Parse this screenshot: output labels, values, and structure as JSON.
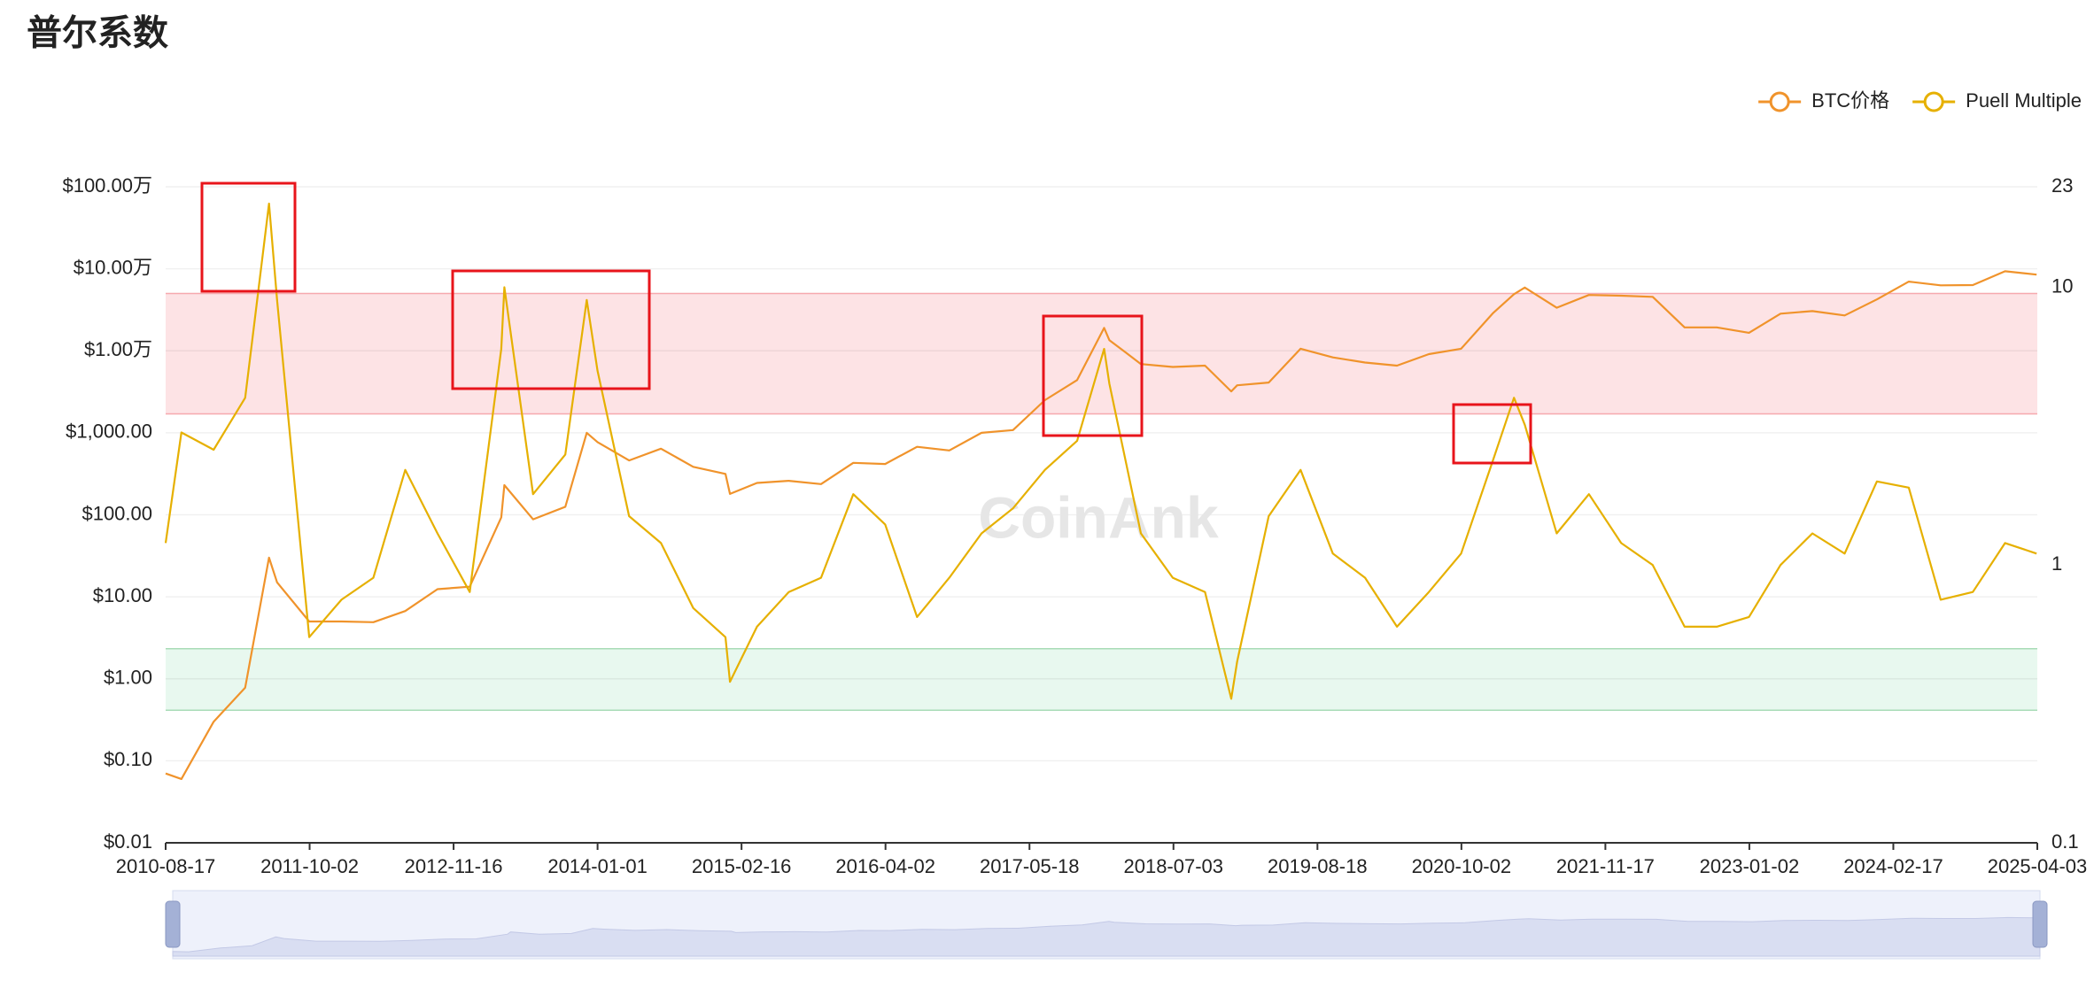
{
  "chart_data": {
    "type": "line",
    "title": "普尔系数",
    "watermark": "CoinAnk",
    "legend": "top-right",
    "grid": true,
    "yscale": "log",
    "y2scale": "log",
    "x": [
      "2010-08-17",
      "2010-10-01",
      "2011-01-01",
      "2011-04-01",
      "2011-06-08",
      "2011-07-01",
      "2011-10-01",
      "2012-01-01",
      "2012-04-01",
      "2012-07-01",
      "2012-10-01",
      "2013-01-01",
      "2013-04-01",
      "2013-04-10",
      "2013-07-01",
      "2013-10-01",
      "2013-12-01",
      "2014-01-01",
      "2014-04-01",
      "2014-07-01",
      "2014-10-01",
      "2015-01-01",
      "2015-01-14",
      "2015-04-01",
      "2015-07-01",
      "2015-10-01",
      "2016-01-01",
      "2016-04-01",
      "2016-07-01",
      "2016-10-01",
      "2017-01-01",
      "2017-04-01",
      "2017-07-01",
      "2017-10-01",
      "2017-12-17",
      "2018-01-01",
      "2018-04-01",
      "2018-07-01",
      "2018-10-01",
      "2018-12-15",
      "2019-01-01",
      "2019-04-01",
      "2019-07-01",
      "2019-10-01",
      "2020-01-01",
      "2020-04-01",
      "2020-07-01",
      "2020-10-01",
      "2021-01-01",
      "2021-03-01",
      "2021-04-01",
      "2021-07-01",
      "2021-10-01",
      "2022-01-01",
      "2022-04-01",
      "2022-07-01",
      "2022-10-01",
      "2023-01-01",
      "2023-04-01",
      "2023-07-01",
      "2023-10-01",
      "2024-01-01",
      "2024-04-01",
      "2024-07-01",
      "2024-10-01",
      "2025-01-01",
      "2025-04-01"
    ],
    "series": [
      {
        "name": "BTC价格",
        "color": "#f0932b",
        "axis": "y",
        "values": [
          0.07,
          0.06,
          0.3,
          0.78,
          30,
          15,
          5,
          5,
          4.9,
          6.7,
          12.4,
          13.3,
          93,
          230,
          88,
          125,
          1000,
          770,
          460,
          640,
          385,
          315,
          180,
          245,
          260,
          237,
          430,
          417,
          675,
          610,
          1000,
          1080,
          2500,
          4400,
          19000,
          13500,
          6900,
          6350,
          6600,
          3200,
          3800,
          4100,
          10600,
          8300,
          7200,
          6600,
          9100,
          10600,
          29000,
          49000,
          59000,
          33500,
          48000,
          47000,
          45500,
          19300,
          19300,
          16600,
          28400,
          30500,
          27000,
          42300,
          69700,
          62900,
          63300,
          93400,
          85000
        ]
      },
      {
        "name": "Puell Multiple",
        "color": "#e6b000",
        "axis": "y2",
        "values": [
          1.2,
          3,
          2.6,
          4,
          20,
          9,
          0.55,
          0.75,
          0.9,
          2.2,
          1.3,
          0.8,
          6,
          10,
          1.8,
          2.5,
          9,
          5,
          1.5,
          1.2,
          0.7,
          0.55,
          0.38,
          0.6,
          0.8,
          0.9,
          1.8,
          1.4,
          0.65,
          0.9,
          1.3,
          1.6,
          2.2,
          2.8,
          6,
          4.5,
          1.3,
          0.9,
          0.8,
          0.33,
          0.45,
          1.5,
          2.2,
          1.1,
          0.9,
          0.6,
          0.8,
          1.1,
          2.4,
          4,
          3.2,
          1.3,
          1.8,
          1.2,
          1,
          0.6,
          0.6,
          0.65,
          1,
          1.3,
          1.1,
          2,
          1.9,
          0.75,
          0.8,
          1.2,
          1.1
        ]
      }
    ],
    "bands": [
      {
        "axis": "y2",
        "range": [
          3.5,
          9.5
        ],
        "color": "#fde3e5",
        "edge": "#f6a9ae"
      },
      {
        "axis": "y2",
        "range": [
          0.3,
          0.5
        ],
        "color": "#e8f8ef",
        "edge": "#a9dcb7"
      }
    ],
    "xlim": [
      "2010-08-17",
      "2025-04-03"
    ],
    "xticks": [
      "2010-08-17",
      "2011-10-02",
      "2012-11-16",
      "2014-01-01",
      "2015-02-16",
      "2016-04-02",
      "2017-05-18",
      "2018-07-03",
      "2019-08-18",
      "2020-10-02",
      "2021-11-17",
      "2023-01-02",
      "2024-02-17",
      "2025-04-03"
    ],
    "ylim": [
      0.01,
      1000000
    ],
    "yticks": [
      {
        "value": 0.01,
        "label": "$0.01"
      },
      {
        "value": 0.1,
        "label": "$0.10"
      },
      {
        "value": 1,
        "label": "$1.00"
      },
      {
        "value": 10,
        "label": "$10.00"
      },
      {
        "value": 100,
        "label": "$100.00"
      },
      {
        "value": 1000,
        "label": "$1,000.00"
      },
      {
        "value": 10000,
        "label": "$1.00万"
      },
      {
        "value": 100000,
        "label": "$10.00万"
      },
      {
        "value": 1000000,
        "label": "$100.00万"
      }
    ],
    "y2lim": [
      0.1,
      23
    ],
    "y2ticks": [
      0.1,
      1,
      10,
      23
    ]
  }
}
